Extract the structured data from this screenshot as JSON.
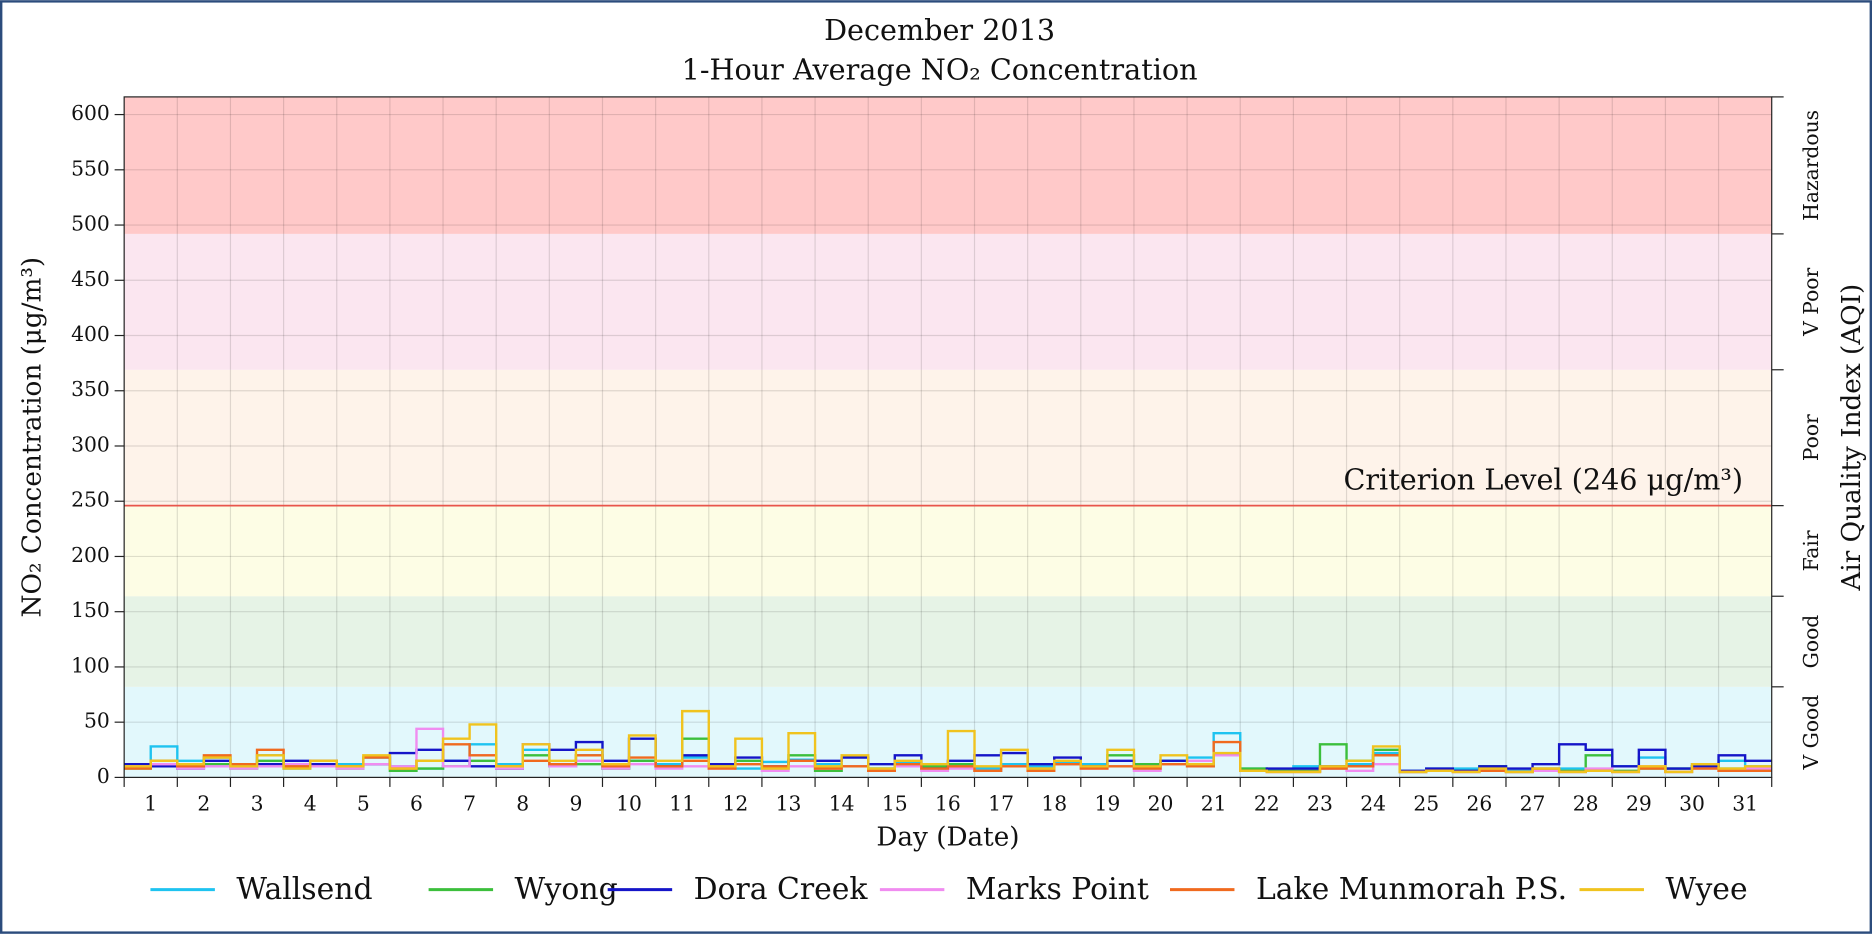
{
  "chart_data": {
    "type": "line",
    "title": "December 2013",
    "subtitle": "1-Hour Average NO₂ Concentration",
    "x_label": "Day (Date)",
    "y_label": "NO₂ Concentration (μg/m³)",
    "y2_label": "Air Quality Index (AQI)",
    "categories": [
      "1",
      "2",
      "3",
      "4",
      "5",
      "6",
      "7",
      "8",
      "9",
      "10",
      "11",
      "12",
      "13",
      "14",
      "15",
      "16",
      "17",
      "18",
      "19",
      "20",
      "21",
      "22",
      "23",
      "24",
      "25",
      "26",
      "27",
      "28",
      "29",
      "30",
      "31"
    ],
    "x": [
      1,
      1.5,
      2,
      2.5,
      3,
      3.5,
      4,
      4.5,
      5,
      5.5,
      6,
      6.5,
      7,
      7.5,
      8,
      8.5,
      9,
      9.5,
      10,
      10.5,
      11,
      11.5,
      12,
      12.5,
      13,
      13.5,
      14,
      14.5,
      15,
      15.5,
      16,
      16.5,
      17,
      17.5,
      18,
      18.5,
      19,
      19.5,
      20,
      20.5,
      21,
      21.5,
      22,
      22.5,
      23,
      23.5,
      24,
      24.5,
      25,
      25.5,
      26,
      26.5,
      27,
      27.5,
      28,
      28.5,
      29,
      29.5,
      30,
      30.5,
      31,
      31.5
    ],
    "xlim": [
      1,
      32
    ],
    "ylim": [
      0,
      616
    ],
    "yticks": [
      0,
      50,
      100,
      150,
      200,
      250,
      300,
      350,
      400,
      450,
      500,
      550,
      600
    ],
    "grid": true,
    "legend": "bottom",
    "bands": [
      {
        "label": "V Good",
        "from": 0,
        "to": 82,
        "color": "#e2f8fc"
      },
      {
        "label": "Good",
        "from": 82,
        "to": 164,
        "color": "#e6f3e6"
      },
      {
        "label": "Fair",
        "from": 164,
        "to": 246,
        "color": "#fdfde5"
      },
      {
        "label": "Poor",
        "from": 246,
        "to": 369,
        "color": "#fef3ea"
      },
      {
        "label": "V Poor",
        "from": 369,
        "to": 492,
        "color": "#fbe6f0"
      },
      {
        "label": "Hazardous",
        "from": 492,
        "to": 616,
        "color": "#ffc9c9"
      }
    ],
    "criterion": {
      "value": 246,
      "label": "Criterion Level (246 μg/m³)",
      "color": "#e8554b"
    },
    "series": [
      {
        "name": "Wallsend",
        "color": "#1ec3f0",
        "values": [
          12,
          28,
          15,
          18,
          10,
          20,
          8,
          15,
          12,
          18,
          10,
          8,
          15,
          30,
          12,
          25,
          10,
          20,
          8,
          15,
          12,
          18,
          10,
          8,
          14,
          16,
          12,
          10,
          8,
          14,
          12,
          10,
          8,
          12,
          10,
          14,
          12,
          10,
          8,
          15,
          18,
          40,
          8,
          6,
          10,
          8,
          12,
          22,
          6,
          8,
          8,
          10,
          6,
          8,
          8,
          6,
          10,
          18,
          8,
          12,
          15,
          10
        ]
      },
      {
        "name": "Wyong",
        "color": "#3cbf3c",
        "values": [
          8,
          15,
          10,
          12,
          8,
          15,
          10,
          12,
          8,
          12,
          6,
          8,
          10,
          15,
          8,
          20,
          10,
          12,
          8,
          15,
          10,
          35,
          12,
          15,
          8,
          20,
          6,
          10,
          8,
          12,
          10,
          12,
          6,
          10,
          8,
          12,
          10,
          20,
          12,
          15,
          10,
          20,
          8,
          6,
          6,
          30,
          15,
          25,
          5,
          6,
          6,
          10,
          5,
          6,
          6,
          20,
          6,
          8,
          8,
          10,
          8,
          8
        ]
      },
      {
        "name": "Dora Creek",
        "color": "#1515c8",
        "values": [
          12,
          10,
          8,
          15,
          10,
          12,
          15,
          12,
          10,
          12,
          22,
          25,
          15,
          10,
          8,
          30,
          25,
          32,
          15,
          35,
          10,
          20,
          12,
          18,
          10,
          15,
          15,
          18,
          12,
          20,
          8,
          15,
          20,
          22,
          12,
          18,
          10,
          15,
          10,
          15,
          12,
          20,
          6,
          8,
          8,
          10,
          10,
          20,
          6,
          8,
          6,
          10,
          8,
          12,
          30,
          25,
          10,
          25,
          8,
          10,
          20,
          15
        ]
      },
      {
        "name": "Marks Point",
        "color": "#f08cf0",
        "values": [
          10,
          12,
          8,
          10,
          8,
          10,
          12,
          10,
          8,
          12,
          10,
          44,
          10,
          20,
          8,
          30,
          10,
          15,
          8,
          12,
          8,
          10,
          8,
          12,
          6,
          10,
          8,
          10,
          6,
          10,
          6,
          8,
          6,
          10,
          8,
          12,
          8,
          10,
          6,
          12,
          15,
          20,
          6,
          5,
          5,
          8,
          6,
          12,
          5,
          6,
          5,
          6,
          5,
          6,
          5,
          8,
          5,
          10,
          5,
          8,
          6,
          8
        ]
      },
      {
        "name": "Lake Munmorah P.S.",
        "color": "#f06a1e",
        "values": [
          8,
          15,
          10,
          20,
          12,
          25,
          10,
          15,
          10,
          18,
          8,
          15,
          30,
          20,
          10,
          15,
          12,
          20,
          10,
          18,
          10,
          15,
          8,
          12,
          10,
          15,
          8,
          10,
          6,
          12,
          8,
          10,
          6,
          10,
          6,
          12,
          8,
          10,
          8,
          12,
          10,
          32,
          6,
          5,
          5,
          8,
          10,
          20,
          5,
          6,
          5,
          6,
          5,
          8,
          5,
          6,
          5,
          8,
          5,
          8,
          6,
          6
        ]
      },
      {
        "name": "Wyee",
        "color": "#f0c31e",
        "values": [
          10,
          15,
          12,
          18,
          10,
          20,
          8,
          15,
          10,
          20,
          8,
          15,
          35,
          48,
          10,
          30,
          15,
          25,
          12,
          38,
          15,
          60,
          10,
          35,
          8,
          40,
          10,
          20,
          8,
          15,
          12,
          42,
          10,
          25,
          8,
          15,
          10,
          25,
          10,
          20,
          12,
          22,
          6,
          5,
          5,
          10,
          15,
          28,
          5,
          6,
          5,
          8,
          5,
          8,
          5,
          6,
          5,
          10,
          5,
          12,
          8,
          10
        ]
      }
    ]
  }
}
